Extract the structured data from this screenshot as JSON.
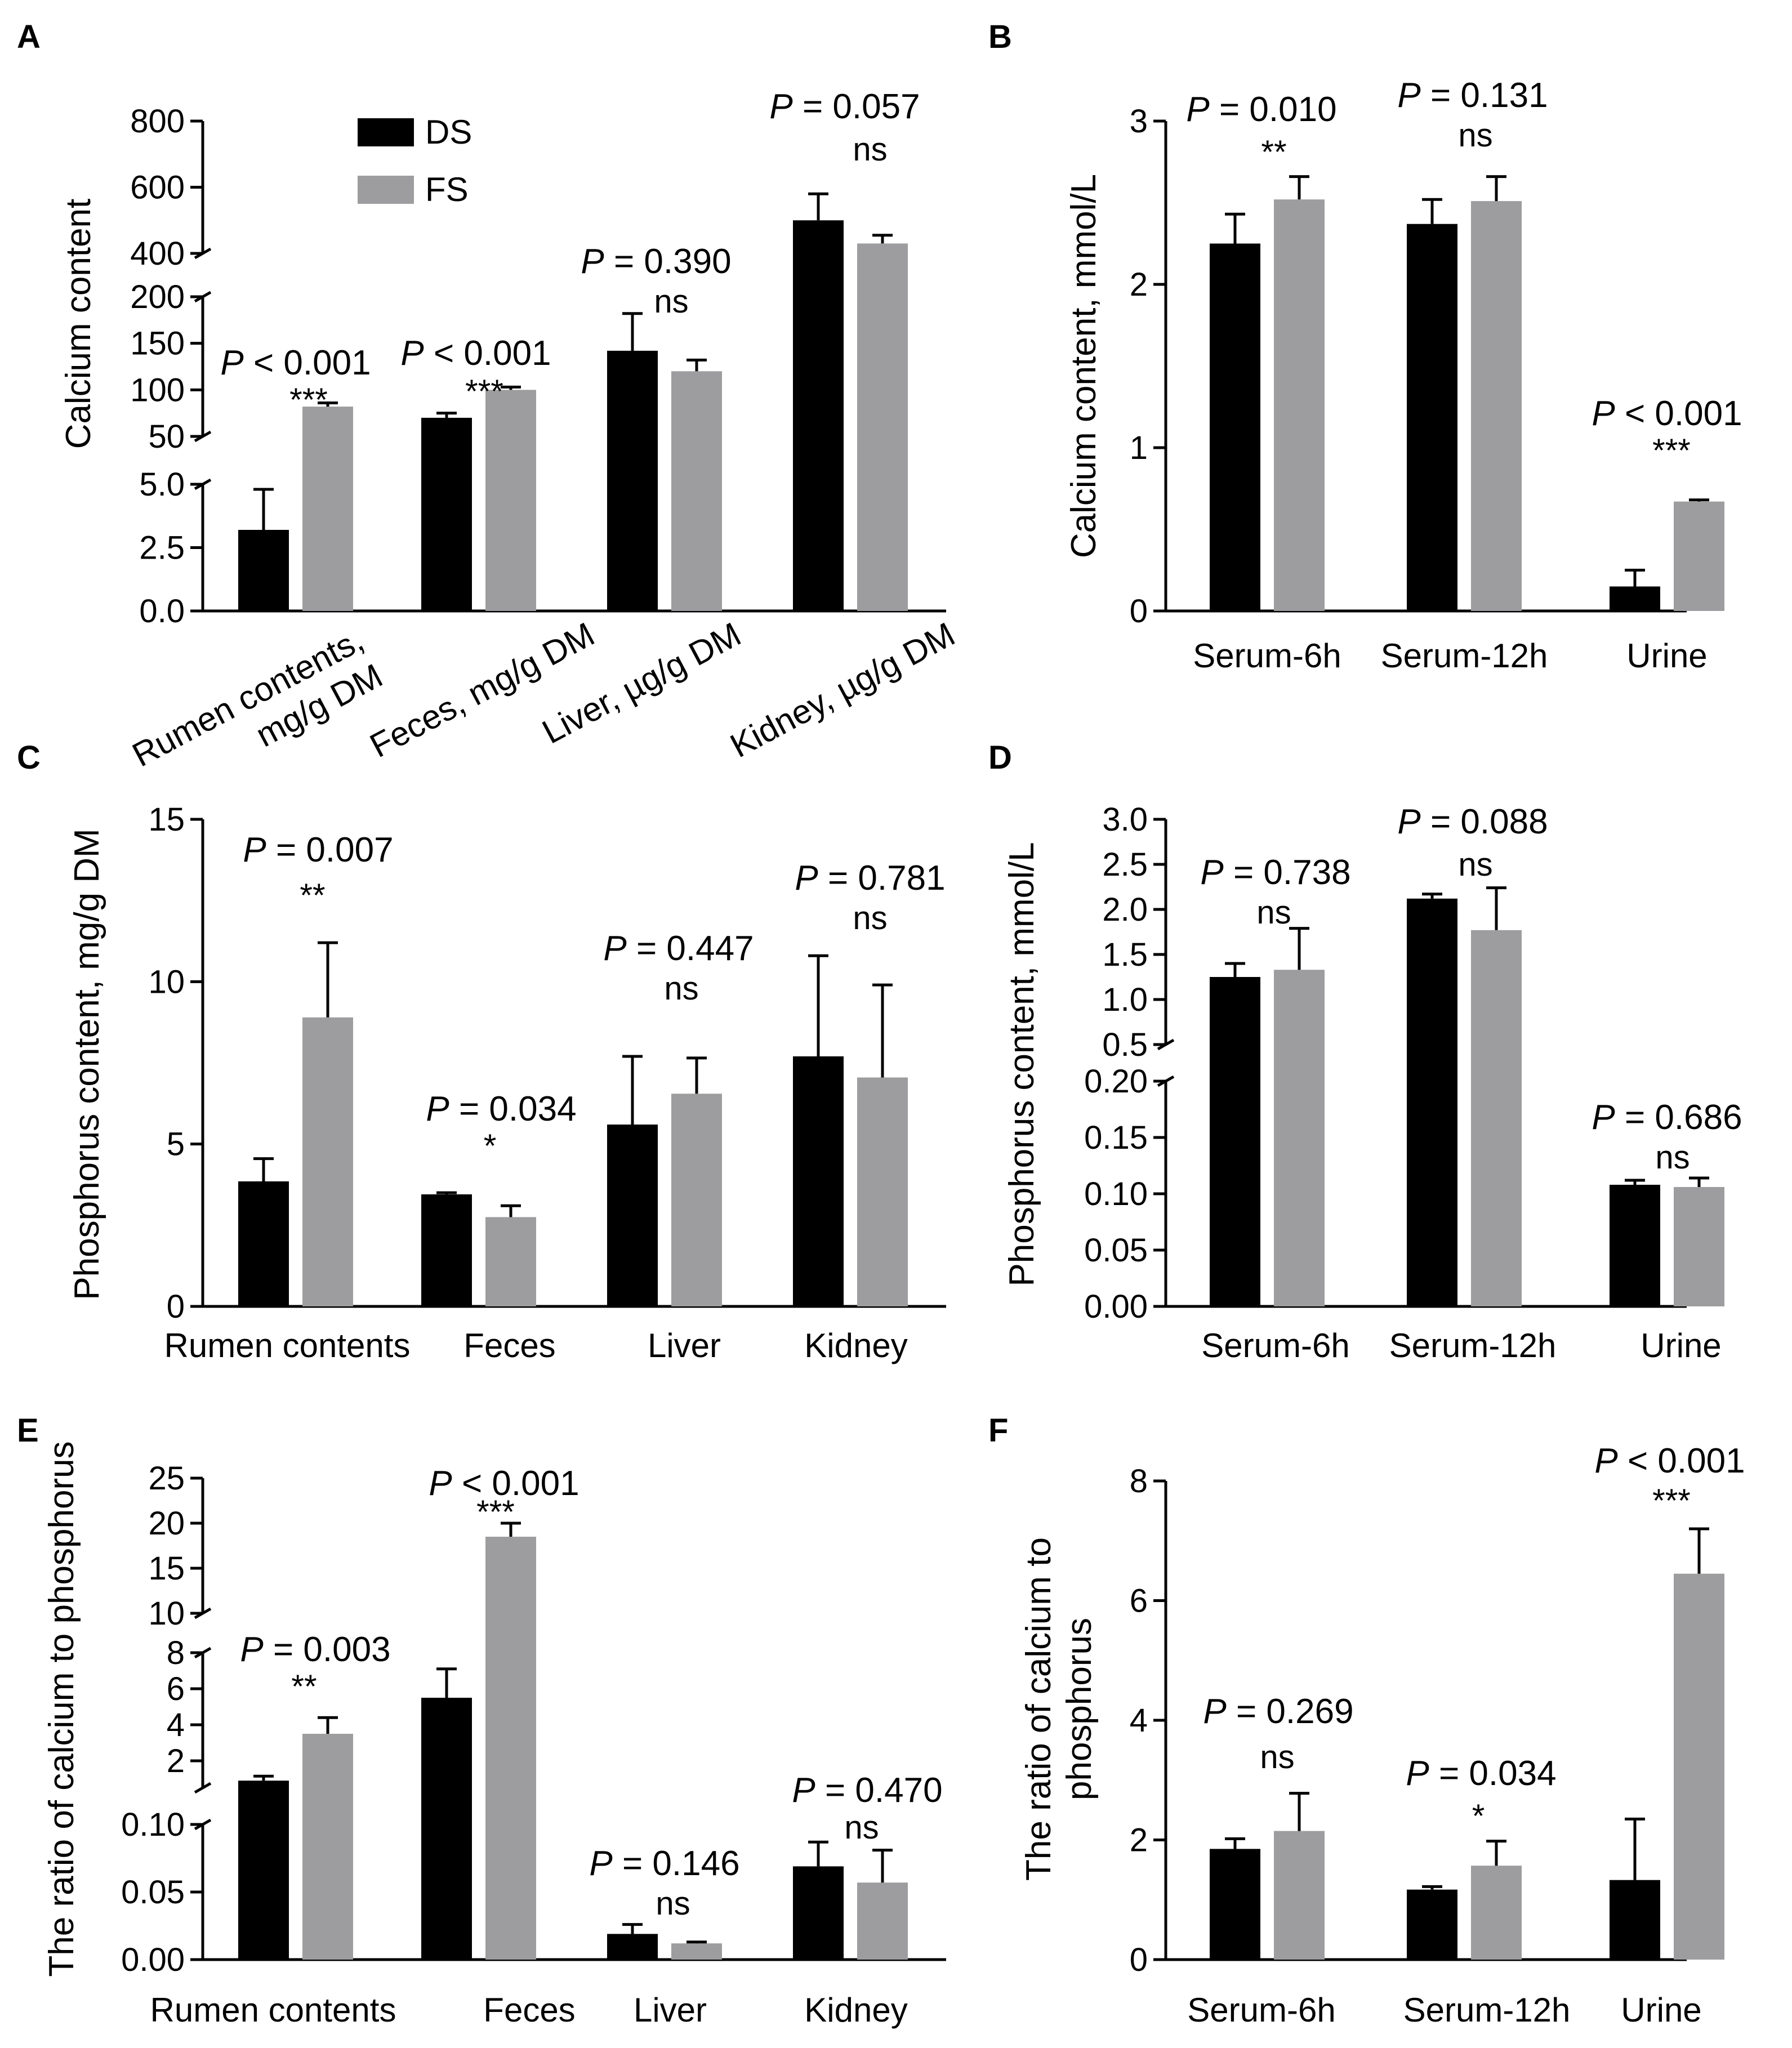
{
  "colors": {
    "DS": "#000000",
    "FS": "#9d9d9f"
  },
  "legend": {
    "DS": "DS",
    "FS": "FS"
  },
  "chart_data": [
    {
      "panel": "A",
      "type": "bar",
      "ylabel": "Calcium content",
      "categories": [
        "Rumen contents,\nmg/g DM",
        "Feces, mg/g DM",
        "Liver, µg/g DM",
        "Kidney, µg/g DM"
      ],
      "series": [
        {
          "name": "DS",
          "values": [
            3.2,
            70,
            142,
            500
          ],
          "errors": [
            1.6,
            5,
            40,
            80
          ]
        },
        {
          "name": "FS",
          "values": [
            82,
            100,
            120,
            430
          ],
          "errors": [
            4,
            3,
            12,
            25
          ]
        }
      ],
      "broken_axis": [
        {
          "range": [
            0,
            5
          ],
          "ticks": [
            "0.0",
            "2.5",
            "5.0"
          ]
        },
        {
          "range": [
            50,
            200
          ],
          "ticks": [
            "50",
            "100",
            "150",
            "200"
          ]
        },
        {
          "range": [
            400,
            800
          ],
          "ticks": [
            "400",
            "600",
            "800"
          ]
        }
      ],
      "pvalues": [
        "P < 0.001",
        "P < 0.001",
        "P = 0.390",
        "P = 0.057"
      ],
      "sig": [
        "***",
        "***",
        "ns",
        "ns"
      ]
    },
    {
      "panel": "B",
      "type": "bar",
      "ylabel": "Calcium content, mmol/L",
      "categories": [
        "Serum-6h",
        "Serum-12h",
        "Urine"
      ],
      "ylim": [
        0,
        3
      ],
      "ticks": [
        "0",
        "1",
        "2",
        "3"
      ],
      "series": [
        {
          "name": "DS",
          "values": [
            2.25,
            2.37,
            0.15
          ],
          "errors": [
            0.18,
            0.15,
            0.1
          ]
        },
        {
          "name": "FS",
          "values": [
            2.52,
            2.51,
            0.67
          ],
          "errors": [
            0.14,
            0.15,
            0.01
          ]
        }
      ],
      "pvalues": [
        "P = 0.010",
        "P = 0.131",
        "P < 0.001"
      ],
      "sig": [
        "**",
        "ns",
        "***"
      ]
    },
    {
      "panel": "C",
      "type": "bar",
      "ylabel": "Phosphorus content, mg/g DM",
      "categories": [
        "Rumen contents",
        "Feces",
        "Liver",
        "Kidney"
      ],
      "ylim": [
        0,
        15
      ],
      "ticks": [
        "0",
        "5",
        "10",
        "15"
      ],
      "series": [
        {
          "name": "DS",
          "values": [
            3.85,
            3.45,
            5.6,
            7.7
          ],
          "errors": [
            0.7,
            0.05,
            2.1,
            3.1
          ]
        },
        {
          "name": "FS",
          "values": [
            8.9,
            2.75,
            6.55,
            7.05
          ],
          "errors": [
            2.3,
            0.35,
            1.1,
            2.85
          ]
        }
      ],
      "pvalues": [
        "P = 0.007",
        "P = 0.034",
        "P = 0.447",
        "P = 0.781"
      ],
      "sig": [
        "**",
        "*",
        "ns",
        "ns"
      ]
    },
    {
      "panel": "D",
      "type": "bar",
      "ylabel": "Phosphorus content, mmol/L",
      "categories": [
        "Serum-6h",
        "Serum-12h",
        "Urine"
      ],
      "series": [
        {
          "name": "DS",
          "values": [
            1.25,
            2.12,
            0.108
          ],
          "errors": [
            0.15,
            0.05,
            0.004
          ]
        },
        {
          "name": "FS",
          "values": [
            1.33,
            1.77,
            0.106
          ],
          "errors": [
            0.46,
            0.47,
            0.008
          ]
        }
      ],
      "broken_axis": [
        {
          "range": [
            0,
            0.2
          ],
          "ticks": [
            "0.00",
            "0.05",
            "0.10",
            "0.15",
            "0.20"
          ]
        },
        {
          "range": [
            0.5,
            3.0
          ],
          "ticks": [
            "0.5",
            "1.0",
            "1.5",
            "2.0",
            "2.5",
            "3.0"
          ]
        }
      ],
      "pvalues": [
        "P = 0.738",
        "P = 0.088",
        "P = 0.686"
      ],
      "sig": [
        "ns",
        "ns",
        "ns"
      ]
    },
    {
      "panel": "E",
      "type": "bar",
      "ylabel": "The ratio of calcium to phosphorus",
      "categories": [
        "Rumen contents",
        "Feces",
        "Liver",
        "Kidney"
      ],
      "series": [
        {
          "name": "DS",
          "values": [
            0.9,
            5.5,
            0.019,
            0.069
          ],
          "errors": [
            0.25,
            1.6,
            0.007,
            0.018
          ]
        },
        {
          "name": "FS",
          "values": [
            3.5,
            18.5,
            0.012,
            0.057
          ],
          "errors": [
            0.9,
            1.5,
            0.001,
            0.024
          ]
        }
      ],
      "broken_axis": [
        {
          "range": [
            0,
            0.1
          ],
          "ticks": [
            "0.00",
            "0.05",
            "0.10"
          ]
        },
        {
          "range": [
            0.5,
            8
          ],
          "ticks": [
            "2",
            "4",
            "6",
            "8"
          ]
        },
        {
          "range": [
            10,
            25
          ],
          "ticks": [
            "10",
            "15",
            "20",
            "25"
          ]
        }
      ],
      "pvalues": [
        "P = 0.003",
        "P < 0.001",
        "P = 0.146",
        "P = 0.470"
      ],
      "sig": [
        "**",
        "***",
        "ns",
        "ns"
      ]
    },
    {
      "panel": "F",
      "type": "bar",
      "ylabel": "The ratio of calcium to\nphosphorus",
      "categories": [
        "Serum-6h",
        "Serum-12h",
        "Urine"
      ],
      "ylim": [
        0,
        8
      ],
      "ticks": [
        "0",
        "2",
        "4",
        "6",
        "8"
      ],
      "series": [
        {
          "name": "DS",
          "values": [
            1.85,
            1.17,
            1.33
          ],
          "errors": [
            0.17,
            0.05,
            1.02
          ]
        },
        {
          "name": "FS",
          "values": [
            2.15,
            1.57,
            6.45
          ],
          "errors": [
            0.63,
            0.41,
            0.75
          ]
        }
      ],
      "pvalues": [
        "P = 0.269",
        "P = 0.034",
        "P < 0.001"
      ],
      "sig": [
        "ns",
        "*",
        "***"
      ]
    }
  ]
}
